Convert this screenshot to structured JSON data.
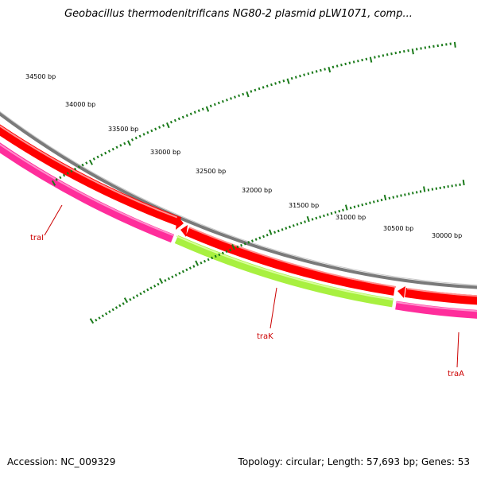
{
  "title": "Geobacillus thermodenitrificans NG80-2 plasmid pLW1071, comp...",
  "footer": {
    "accession": "Accession: NC_009329",
    "summary": "Topology: circular; Length: 57,693 bp; Genes: 53"
  },
  "scale": {
    "tick_labels": [
      "34500 bp",
      "34000 bp",
      "33500 bp",
      "33000 bp",
      "32500 bp",
      "32000 bp",
      "31500 bp",
      "31000 bp",
      "30500 bp",
      "30000 bp"
    ]
  },
  "genes": [
    {
      "name": "traI",
      "color": "#ff2d9b"
    },
    {
      "name": "traK",
      "color": "#a8f040"
    },
    {
      "name": "traA",
      "color": "#ff2d9b"
    }
  ],
  "colors": {
    "backbone": "#808080",
    "forward_track": "#ff0000",
    "tick": "#1a7a1a",
    "label": "#cc0000"
  }
}
